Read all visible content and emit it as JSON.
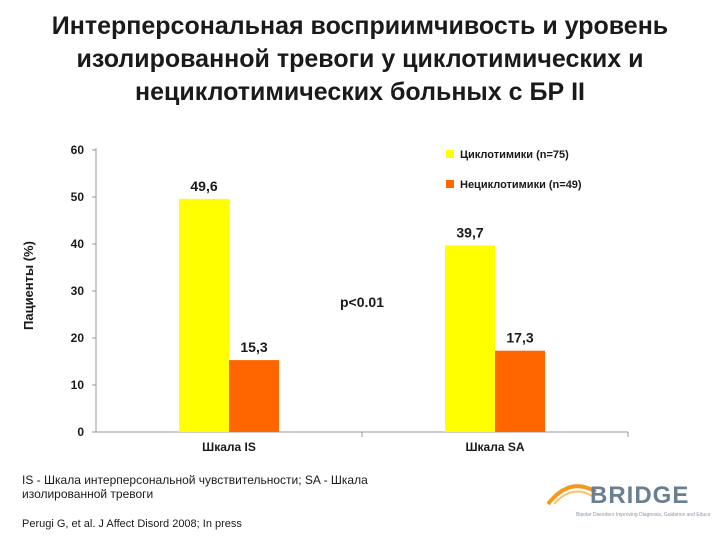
{
  "title": {
    "line1": "Интерперсональная восприимчивость и уровень",
    "line2": "изолированной тревоги у циклотимических и",
    "line3": "нециклотимических больных с БР II"
  },
  "colors": {
    "series1": "#ffff00",
    "series2": "#ff6600",
    "axis": "#999999",
    "text": "#1a1a1a"
  },
  "chart_data": {
    "type": "bar",
    "categories": [
      "Шкала IS",
      "Шкала SA"
    ],
    "series": [
      {
        "name": "Циклотимики (n=75)",
        "values": [
          49.6,
          39.7
        ],
        "labels": [
          "49,6",
          "39,7"
        ],
        "color": "#ffff00"
      },
      {
        "name": "Нециклотимики (n=49)",
        "values": [
          15.3,
          17.3
        ],
        "labels": [
          "15,3",
          "17,3"
        ],
        "color": "#ff6600"
      }
    ],
    "ylabel": "Пациенты (%)",
    "ylim": [
      0,
      60
    ],
    "yticks": [
      0,
      10,
      20,
      30,
      40,
      50,
      60
    ],
    "annotation": "p<0.01",
    "legend_position": "top-right",
    "grid": false
  },
  "footnote": "IS - Шкала интерперсональной чувствительности; SA - Шкала изолированной тревоги",
  "citation": "Perugi G, et al. J Affect Disord 2008; In press",
  "logo": {
    "text": "BRIDGE",
    "tagline": "Bipolar Disorders Improving Diagnosis, Guidance and Education"
  }
}
